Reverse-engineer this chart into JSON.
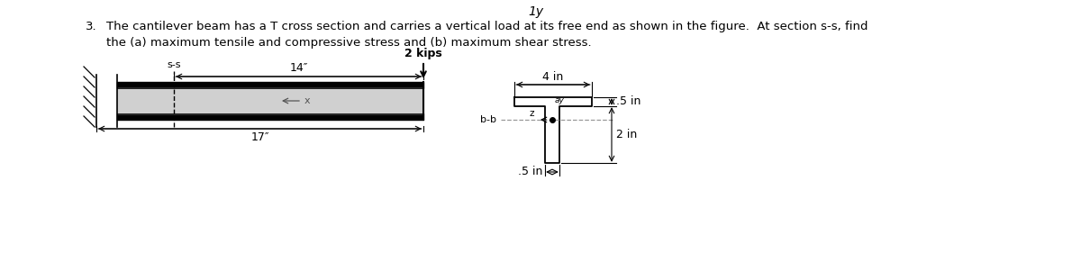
{
  "title_number": "3.",
  "title_text": "The cantilever beam has a T cross section and carries a vertical load at its free end as shown in the figure.  At section s-s, find",
  "title_text2": "the (a) maximum tensile and compressive stress and (b) maximum shear stress.",
  "top_label": "1y",
  "load_label": "2 kips",
  "ss_label": "s-s",
  "dim_14": "14″",
  "dim_17": "17″",
  "dim_4in": "4 in",
  "dim_5in_flange": ".5 in",
  "dim_5in_web": ".5 in",
  "dim_2in": "2 in",
  "bb_label": "b-b",
  "x_label": "x",
  "ay_label": "ay",
  "z_label": "z",
  "bg_color": "#ffffff",
  "text_color": "#000000",
  "beam_color": "#000000",
  "hatch_color": "#000000",
  "gray_fill": "#d0d0d0",
  "dashed_color": "#999999"
}
